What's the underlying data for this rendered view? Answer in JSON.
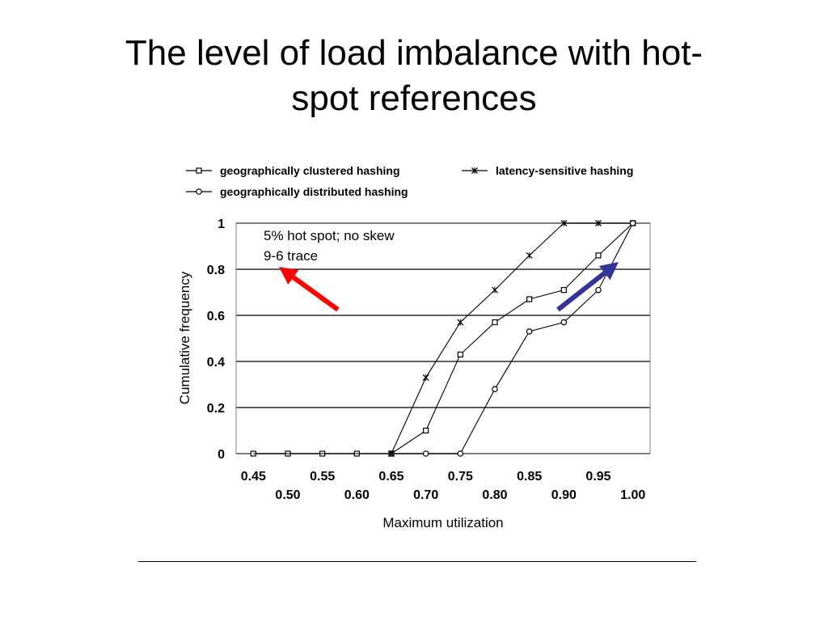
{
  "slide": {
    "title_line1": "The level of load imbalance with hot-",
    "title_line2": "spot references"
  },
  "colors": {
    "red_arrow": "#ff0000",
    "blue_arrow": "#333399",
    "series_line": "#000000",
    "grid": "#000000"
  },
  "chart_data": {
    "type": "line",
    "xlabel": "Maximum utilization",
    "ylabel": "Cumulative frequency",
    "x": [
      0.45,
      0.5,
      0.55,
      0.6,
      0.65,
      0.7,
      0.75,
      0.8,
      0.85,
      0.9,
      0.95,
      1.0
    ],
    "x_tick_labels": [
      "0.45",
      "0.50",
      "0.55",
      "0.60",
      "0.65",
      "0.70",
      "0.75",
      "0.80",
      "0.85",
      "0.90",
      "0.95",
      "1.00"
    ],
    "y_tick_labels": [
      "0",
      "0.2",
      "0.4",
      "0.6",
      "0.8",
      "1"
    ],
    "y_ticks": [
      0,
      0.2,
      0.4,
      0.6,
      0.8,
      1.0
    ],
    "xlim": [
      0.425,
      1.025
    ],
    "ylim": [
      0,
      1
    ],
    "grid": "horizontal",
    "legend_position": "top",
    "annotation": [
      "5% hot spot; no skew",
      "9-6 trace"
    ],
    "series": [
      {
        "name": "geographically clustered hashing",
        "marker": "square",
        "values": [
          0,
          0,
          0,
          0,
          0,
          0.1,
          0.43,
          0.57,
          0.67,
          0.71,
          0.86,
          1.0
        ],
        "marker_x": [
          0.45,
          0.5,
          0.55,
          0.6,
          0.65,
          0.7,
          0.75,
          0.8,
          0.85,
          0.9,
          0.95,
          1.0
        ],
        "marker_values": [
          0,
          0,
          0,
          0,
          0,
          0.1,
          0.43,
          0.57,
          0.67,
          0.71,
          0.86,
          1.0
        ]
      },
      {
        "name": "latency-sensitive hashing",
        "marker": "star",
        "values": [
          0,
          0,
          0,
          0,
          0,
          0.33,
          0.57,
          0.71,
          0.86,
          1.0,
          1.0,
          1.0
        ],
        "marker_x": [
          0.65,
          0.7,
          0.75,
          0.8,
          0.85,
          0.9,
          0.95,
          1.0
        ],
        "marker_values": [
          0,
          0.33,
          0.57,
          0.71,
          0.86,
          1.0,
          1.0,
          1.0
        ]
      },
      {
        "name": "geographically distributed hashing",
        "marker": "circle",
        "values": [
          0,
          0,
          0,
          0,
          0,
          0,
          0,
          0.28,
          0.53,
          0.57,
          0.71,
          1.0
        ],
        "marker_x": [
          0.7,
          0.75,
          0.8,
          0.85,
          0.9,
          0.95,
          1.0
        ],
        "marker_values": [
          0,
          0,
          0.28,
          0.53,
          0.57,
          0.71,
          1.0
        ]
      }
    ]
  }
}
